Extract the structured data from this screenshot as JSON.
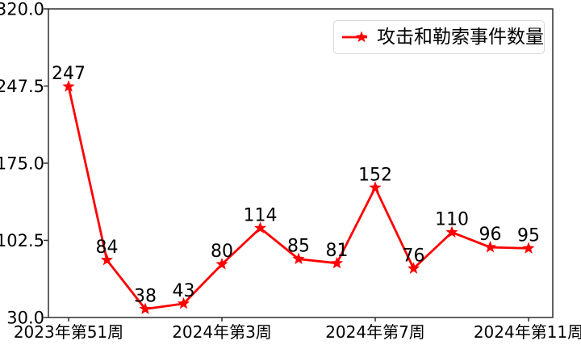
{
  "chart_data": {
    "type": "line",
    "series": [
      {
        "name": "攻击和勒索事件数量",
        "color": "#ff0000",
        "marker": "star",
        "values": [
          247,
          84,
          38,
          43,
          80,
          114,
          85,
          81,
          152,
          76,
          110,
          96,
          95
        ]
      }
    ],
    "x_tick_labels": [
      "2023年第51周",
      "2024年第3周",
      "2024年第7周",
      "2024年第11周"
    ],
    "x_tick_indices": [
      0,
      4,
      8,
      12
    ],
    "y_ticks": [
      30.0,
      102.5,
      175.0,
      247.5,
      320.0
    ],
    "y_tick_labels": [
      "30.0",
      "102.5",
      "175.0",
      "247.5",
      "320.0"
    ],
    "ylim": [
      30.0,
      320.0
    ],
    "grid": false,
    "data_labels": true,
    "legend": {
      "position": "upper right",
      "entries": [
        "攻击和勒索事件数量"
      ]
    }
  },
  "colors": {
    "line": "#ff0000",
    "axis": "#2f2f2f",
    "text": "#000000",
    "legend_border": "#d8d8d8",
    "background": "#ffffff"
  }
}
